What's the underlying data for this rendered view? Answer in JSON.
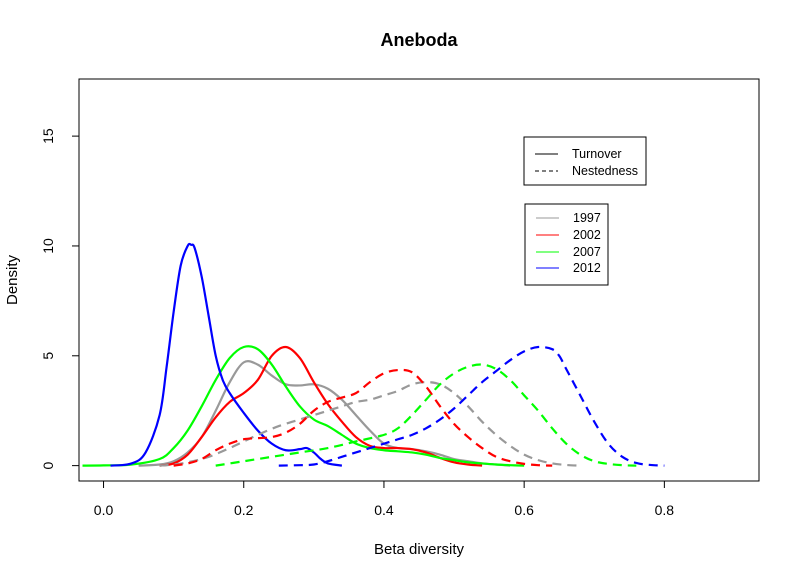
{
  "chart_data": {
    "type": "line",
    "title": "Aneboda",
    "xlabel": "Beta diversity",
    "ylabel": "Density",
    "xlim": [
      -0.035,
      0.935
    ],
    "ylim": [
      -0.7,
      17.6
    ],
    "x_ticks": [
      "0.0",
      "0.2",
      "0.4",
      "0.6",
      "0.8"
    ],
    "x_tick_values": [
      0,
      0.2,
      0.4,
      0.6,
      0.8
    ],
    "y_ticks": [
      "0",
      "5",
      "10",
      "15"
    ],
    "y_tick_values": [
      0,
      5,
      10,
      15
    ],
    "grid": false,
    "legend_linetype": {
      "placement": "top-right",
      "entries": [
        {
          "label": "Turnover",
          "dash": "solid"
        },
        {
          "label": "Nestedness",
          "dash": "dashed"
        }
      ]
    },
    "legend_year": {
      "placement": "right",
      "entries": [
        {
          "label": "1997",
          "color": "#999999"
        },
        {
          "label": "2002",
          "color": "#ff0000"
        },
        {
          "label": "2007",
          "color": "#00ff00"
        },
        {
          "label": "2012",
          "color": "#0000ff"
        }
      ]
    },
    "series": [
      {
        "label": "1997",
        "component": "Turnover",
        "color": "#999999",
        "dash": "solid",
        "x": [
          0.05,
          0.08,
          0.1,
          0.12,
          0.14,
          0.16,
          0.18,
          0.2,
          0.22,
          0.24,
          0.26,
          0.28,
          0.3,
          0.32,
          0.34,
          0.36,
          0.38,
          0.4,
          0.42,
          0.44,
          0.46,
          0.48,
          0.5,
          0.52,
          0.54,
          0.56,
          0.58
        ],
        "y": [
          0,
          0.05,
          0.2,
          0.6,
          1.3,
          2.5,
          3.8,
          4.7,
          4.6,
          4.1,
          3.7,
          3.65,
          3.7,
          3.5,
          3.0,
          2.3,
          1.6,
          1.0,
          0.8,
          0.75,
          0.65,
          0.5,
          0.3,
          0.2,
          0.1,
          0.05,
          0
        ]
      },
      {
        "label": "2002",
        "component": "Turnover",
        "color": "#ff0000",
        "dash": "solid",
        "x": [
          0.08,
          0.1,
          0.12,
          0.14,
          0.16,
          0.18,
          0.2,
          0.22,
          0.24,
          0.26,
          0.28,
          0.3,
          0.32,
          0.34,
          0.36,
          0.38,
          0.4,
          0.42,
          0.44,
          0.46,
          0.48,
          0.5,
          0.52,
          0.54
        ],
        "y": [
          0,
          0.1,
          0.5,
          1.3,
          2.2,
          2.9,
          3.3,
          3.9,
          5.0,
          5.4,
          4.9,
          3.8,
          2.8,
          2.0,
          1.3,
          0.9,
          0.8,
          0.8,
          0.75,
          0.6,
          0.35,
          0.15,
          0.05,
          0
        ]
      },
      {
        "label": "2007",
        "component": "Turnover",
        "color": "#00ff00",
        "dash": "solid",
        "x": [
          -0.03,
          0.0,
          0.04,
          0.08,
          0.1,
          0.12,
          0.14,
          0.16,
          0.18,
          0.2,
          0.22,
          0.24,
          0.26,
          0.28,
          0.3,
          0.32,
          0.34,
          0.36,
          0.38,
          0.4,
          0.42,
          0.44,
          0.46,
          0.48,
          0.5,
          0.52,
          0.54,
          0.56,
          0.58,
          0.6
        ],
        "y": [
          0,
          0.01,
          0.05,
          0.3,
          0.8,
          1.6,
          2.7,
          3.9,
          4.9,
          5.4,
          5.3,
          4.6,
          3.6,
          2.7,
          2.1,
          1.8,
          1.4,
          1.0,
          0.8,
          0.7,
          0.65,
          0.6,
          0.5,
          0.35,
          0.25,
          0.15,
          0.1,
          0.05,
          0.02,
          0
        ]
      },
      {
        "label": "2012",
        "component": "Turnover",
        "color": "#0000ff",
        "dash": "solid",
        "x": [
          0.01,
          0.04,
          0.06,
          0.08,
          0.09,
          0.1,
          0.11,
          0.12,
          0.125,
          0.13,
          0.14,
          0.15,
          0.16,
          0.17,
          0.18,
          0.2,
          0.22,
          0.24,
          0.26,
          0.28,
          0.29,
          0.3,
          0.31,
          0.32,
          0.34
        ],
        "y": [
          0,
          0.1,
          0.6,
          2.3,
          4.5,
          7.0,
          9.1,
          10.0,
          10.05,
          9.9,
          8.6,
          6.8,
          5.0,
          3.9,
          3.3,
          2.4,
          1.6,
          1.0,
          0.7,
          0.75,
          0.8,
          0.6,
          0.3,
          0.1,
          0
        ]
      },
      {
        "label": "1997",
        "component": "Nestedness",
        "color": "#999999",
        "dash": "dashed",
        "x": [
          0.08,
          0.1,
          0.12,
          0.15,
          0.18,
          0.2,
          0.22,
          0.25,
          0.28,
          0.3,
          0.32,
          0.34,
          0.36,
          0.38,
          0.4,
          0.42,
          0.44,
          0.46,
          0.48,
          0.5,
          0.52,
          0.54,
          0.56,
          0.58,
          0.6,
          0.62,
          0.64,
          0.66,
          0.68
        ],
        "y": [
          0,
          0.05,
          0.15,
          0.4,
          0.8,
          1.1,
          1.4,
          1.8,
          2.1,
          2.3,
          2.5,
          2.7,
          2.9,
          3.0,
          3.2,
          3.4,
          3.7,
          3.8,
          3.7,
          3.3,
          2.7,
          2.0,
          1.4,
          0.9,
          0.5,
          0.25,
          0.1,
          0.03,
          0
        ]
      },
      {
        "label": "2002",
        "component": "Nestedness",
        "color": "#ff0000",
        "dash": "dashed",
        "x": [
          0.1,
          0.12,
          0.14,
          0.16,
          0.18,
          0.2,
          0.22,
          0.24,
          0.26,
          0.28,
          0.3,
          0.32,
          0.34,
          0.36,
          0.38,
          0.4,
          0.42,
          0.44,
          0.46,
          0.48,
          0.5,
          0.52,
          0.54,
          0.56,
          0.58,
          0.6,
          0.62,
          0.64
        ],
        "y": [
          0,
          0.1,
          0.3,
          0.7,
          1.0,
          1.2,
          1.25,
          1.3,
          1.5,
          1.9,
          2.5,
          2.9,
          3.1,
          3.3,
          3.8,
          4.2,
          4.35,
          4.25,
          3.6,
          2.7,
          1.9,
          1.3,
          0.8,
          0.4,
          0.2,
          0.08,
          0.02,
          0
        ]
      },
      {
        "label": "2007",
        "component": "Nestedness",
        "color": "#00ff00",
        "dash": "dashed",
        "x": [
          0.16,
          0.2,
          0.24,
          0.28,
          0.32,
          0.36,
          0.4,
          0.42,
          0.44,
          0.46,
          0.48,
          0.5,
          0.52,
          0.54,
          0.56,
          0.58,
          0.6,
          0.62,
          0.64,
          0.66,
          0.68,
          0.7,
          0.72,
          0.74,
          0.76
        ],
        "y": [
          0,
          0.2,
          0.4,
          0.6,
          0.8,
          1.1,
          1.4,
          1.7,
          2.3,
          3.0,
          3.7,
          4.2,
          4.5,
          4.6,
          4.4,
          3.9,
          3.2,
          2.5,
          1.7,
          1.0,
          0.5,
          0.2,
          0.08,
          0.02,
          0
        ]
      },
      {
        "label": "2012",
        "component": "Nestedness",
        "color": "#0000ff",
        "dash": "dashed",
        "x": [
          0.25,
          0.28,
          0.3,
          0.32,
          0.34,
          0.36,
          0.38,
          0.4,
          0.42,
          0.44,
          0.46,
          0.48,
          0.5,
          0.52,
          0.54,
          0.56,
          0.58,
          0.6,
          0.62,
          0.64,
          0.65,
          0.66,
          0.68,
          0.7,
          0.72,
          0.74,
          0.76,
          0.78,
          0.8
        ],
        "y": [
          0,
          0.02,
          0.05,
          0.2,
          0.4,
          0.6,
          0.8,
          1.0,
          1.2,
          1.4,
          1.7,
          2.1,
          2.6,
          3.2,
          3.8,
          4.3,
          4.8,
          5.2,
          5.4,
          5.3,
          5.0,
          4.4,
          3.2,
          2.0,
          1.0,
          0.4,
          0.12,
          0.03,
          0
        ]
      }
    ]
  }
}
